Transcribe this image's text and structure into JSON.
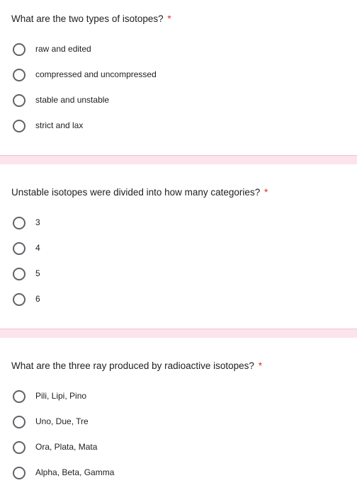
{
  "colors": {
    "required": "#d93025",
    "text": "#202124",
    "radio_border": "#5f6368",
    "separator_bg": "#fce4ec",
    "separator_border": "#f8bbd0",
    "background": "#ffffff"
  },
  "questions": [
    {
      "text": "What are the two types of isotopes?",
      "required": true,
      "options": [
        "raw and edited",
        "compressed and uncompressed",
        "stable and unstable",
        "strict and lax"
      ]
    },
    {
      "text": "Unstable isotopes were divided into how many categories?",
      "required": true,
      "options": [
        "3",
        "4",
        "5",
        "6"
      ]
    },
    {
      "text": "What are the three ray produced by radioactive isotopes?",
      "required": true,
      "options": [
        "Pili, Lipi, Pino",
        "Uno, Due, Tre",
        "Ora, Plata, Mata",
        "Alpha, Beta, Gamma"
      ]
    }
  ]
}
